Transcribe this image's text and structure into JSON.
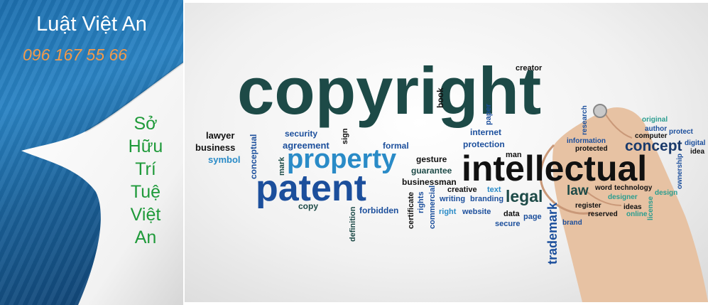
{
  "banner": {
    "brand": "Luật Việt An",
    "phone": "096 167 55 66",
    "vertical_title": [
      "Sở",
      "Hữu",
      "Trí",
      "Tuệ",
      "Việt",
      "An"
    ]
  },
  "word_cloud": {
    "words": {
      "copyright": "copyright",
      "intellectual": "intellectual",
      "patent": "patent",
      "property": "property",
      "concept": "concept",
      "legal": "legal",
      "law": "law",
      "trademark": "trademark",
      "creator": "creator",
      "book": "book",
      "paper": "paper",
      "internet": "internet",
      "protection": "protection",
      "formal": "formal",
      "security": "security",
      "agreement": "agreement",
      "sign": "sign",
      "lawyer": "lawyer",
      "business": "business",
      "symbol": "symbol",
      "conceptual": "conceptual",
      "mark": "mark",
      "gesture": "gesture",
      "guarantee": "guarantee",
      "businessman": "businessman",
      "man": "man",
      "copy": "copy",
      "forbidden": "forbidden",
      "definition": "definition",
      "certificate": "certificate",
      "rights": "rights",
      "commercial": "commercial",
      "creative": "creative",
      "writing": "writing",
      "text": "text",
      "branding": "branding",
      "right": "right",
      "website": "website",
      "data": "data",
      "page": "page",
      "secure": "secure",
      "research": "research",
      "information": "information",
      "protected": "protected",
      "original": "original",
      "author": "author",
      "protect": "protect",
      "computer": "computer",
      "digital": "digital",
      "idea": "idea",
      "ownership": "ownership",
      "word": "word",
      "technology": "technology",
      "designer": "designer",
      "design": "design",
      "register": "register",
      "ideas": "ideas",
      "reserved": "reserved",
      "online": "online",
      "license": "license",
      "brand": "brand"
    },
    "colors": {
      "dark_teal": "#1d4a47",
      "blue": "#1c4f9c",
      "light_blue": "#2a8bc7",
      "teal": "#2a9d8f",
      "black": "#111111",
      "navy": "#1a3a6b"
    }
  }
}
